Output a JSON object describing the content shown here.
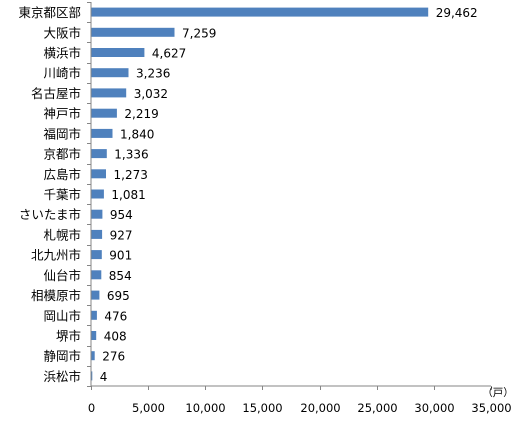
{
  "chart_data": {
    "type": "bar",
    "orientation": "horizontal",
    "categories": [
      "東京都区部",
      "大阪市",
      "横浜市",
      "川崎市",
      "名古屋市",
      "神戸市",
      "福岡市",
      "京都市",
      "広島市",
      "千葉市",
      "さいたま市",
      "札幌市",
      "北九州市",
      "仙台市",
      "相模原市",
      "岡山市",
      "堺市",
      "静岡市",
      "浜松市"
    ],
    "values": [
      29462,
      7259,
      4627,
      3236,
      3032,
      2219,
      1840,
      1336,
      1273,
      1081,
      954,
      927,
      901,
      854,
      695,
      476,
      408,
      276,
      4
    ],
    "value_labels": [
      "29,462",
      "7,259",
      "4,627",
      "3,236",
      "3,032",
      "2,219",
      "1,840",
      "1,336",
      "1,273",
      "1,081",
      "954",
      "927",
      "901",
      "854",
      "695",
      "476",
      "408",
      "276",
      "4"
    ],
    "xlim": [
      0,
      35000
    ],
    "x_ticks": [
      "0",
      "5,000",
      "10,000",
      "15,000",
      "20,000",
      "25,000",
      "30,000",
      "35,000"
    ],
    "unit": "（戸）",
    "bar_color": "#4f81bd",
    "grid": false
  }
}
